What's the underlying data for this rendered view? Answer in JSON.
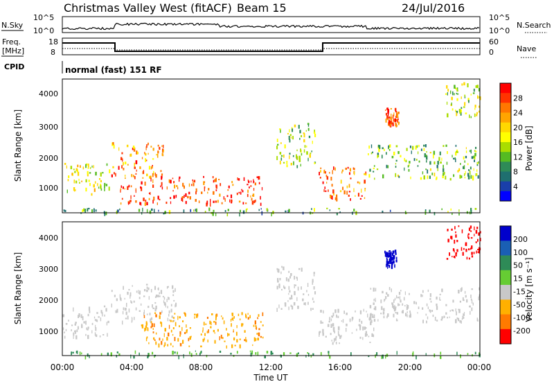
{
  "header": {
    "station": "Christmas Valley West (fitACF)",
    "beam": "Beam 15",
    "date": "24/Jul/2016"
  },
  "top_strips": {
    "nsky_label": "N.Sky",
    "nsky_ticks": [
      "10^5",
      "10^0"
    ],
    "nsearch_label": "N.Search",
    "nsearch_ticks": [
      "10^5",
      "10^0"
    ],
    "freq_label": "Freq.",
    "freq_unit": "[MHz]",
    "freq_ticks": [
      "18",
      "8"
    ],
    "nave_label": "Nave",
    "nave_ticks": [
      "60",
      "0"
    ],
    "cpid_label": "CPID",
    "cpid_text": "normal (fast) 151 RF"
  },
  "x_axis": {
    "label": "Time UT",
    "ticks": [
      "00:00",
      "04:00",
      "08:00",
      "12:00",
      "16:00",
      "20:00",
      "00:00"
    ]
  },
  "panels": {
    "power": {
      "ylabel": "Slant Range [km]",
      "yticks": [
        "4000",
        "3000",
        "2000",
        "1000"
      ],
      "cbar_label": "Power [dB]",
      "cbar_ticks": [
        "28",
        "24",
        "20",
        "16",
        "12",
        "8",
        "4"
      ],
      "cbar_colors": [
        "#ff0000",
        "#ff3300",
        "#ff7700",
        "#ffa500",
        "#ffd800",
        "#ffff00",
        "#aadd00",
        "#55bb22",
        "#2e8b57",
        "#1f6f6f",
        "#1a3faa",
        "#0000ff"
      ]
    },
    "velocity": {
      "ylabel": "Slant Range [km]",
      "yticks": [
        "4000",
        "3000",
        "2000",
        "1000"
      ],
      "cbar_label": "Velocity [m s⁻¹]",
      "cbar_ticks": [
        "200",
        "100",
        "50",
        "15",
        "-15",
        "-50",
        "-100",
        "-200"
      ],
      "cbar_colors": [
        "#0000cc",
        "#1a5fb4",
        "#2e8b57",
        "#66cc33",
        "#c8c8c8",
        "#ffb000",
        "#ff7a00",
        "#ff0000"
      ]
    }
  },
  "chart_data": [
    {
      "type": "heatmap",
      "title": "Power",
      "xlabel": "Time UT",
      "ylabel": "Slant Range [km]",
      "xlim": [
        "00:00",
        "24:00"
      ],
      "ylim": [
        180,
        4500
      ],
      "colorbar": {
        "label": "Power [dB]",
        "range": [
          0,
          30
        ]
      },
      "regions": [
        {
          "t": [
            0.0,
            2.7
          ],
          "r": [
            800,
            1800
          ],
          "power_db": 16
        },
        {
          "t": [
            2.8,
            5.8
          ],
          "r": [
            1300,
            2500
          ],
          "power_db": 22
        },
        {
          "t": [
            3.3,
            11.5
          ],
          "r": [
            500,
            1400
          ],
          "power_db": 26
        },
        {
          "t": [
            14.7,
            17.5
          ],
          "r": [
            600,
            1700
          ],
          "power_db": 24
        },
        {
          "t": [
            12.3,
            14.5
          ],
          "r": [
            1700,
            3100
          ],
          "power_db": 14
        },
        {
          "t": [
            17.5,
            24.0
          ],
          "r": [
            1300,
            2400
          ],
          "power_db": 12
        },
        {
          "t": [
            18.5,
            19.3
          ],
          "r": [
            3000,
            3600
          ],
          "power_db": 26
        },
        {
          "t": [
            22.0,
            24.0
          ],
          "r": [
            3300,
            4400
          ],
          "power_db": 14
        },
        {
          "t": [
            0.0,
            24.0
          ],
          "r": [
            180,
            350
          ],
          "power_db": 10
        }
      ]
    },
    {
      "type": "heatmap",
      "title": "Velocity",
      "xlabel": "Time UT",
      "ylabel": "Slant Range [km]",
      "xlim": [
        "00:00",
        "24:00"
      ],
      "ylim": [
        180,
        4500
      ],
      "colorbar": {
        "label": "Velocity [m s⁻¹]",
        "range": [
          -200,
          200
        ]
      },
      "regions": [
        {
          "t": [
            0.0,
            2.7
          ],
          "r": [
            800,
            1800
          ],
          "velocity": 0
        },
        {
          "t": [
            2.8,
            6.5
          ],
          "r": [
            1300,
            2500
          ],
          "velocity": 0
        },
        {
          "t": [
            4.5,
            11.5
          ],
          "r": [
            500,
            1600
          ],
          "velocity": -40
        },
        {
          "t": [
            14.7,
            18.0
          ],
          "r": [
            600,
            1700
          ],
          "velocity": 0
        },
        {
          "t": [
            12.3,
            14.5
          ],
          "r": [
            1700,
            3100
          ],
          "velocity": 0
        },
        {
          "t": [
            17.5,
            24.0
          ],
          "r": [
            1300,
            2400
          ],
          "velocity": 0
        },
        {
          "t": [
            18.5,
            19.2
          ],
          "r": [
            3100,
            3600
          ],
          "velocity": 200
        },
        {
          "t": [
            22.0,
            24.0
          ],
          "r": [
            3300,
            4400
          ],
          "velocity": -150
        },
        {
          "t": [
            0.0,
            24.0
          ],
          "r": [
            180,
            350
          ],
          "velocity": 30
        }
      ]
    }
  ]
}
